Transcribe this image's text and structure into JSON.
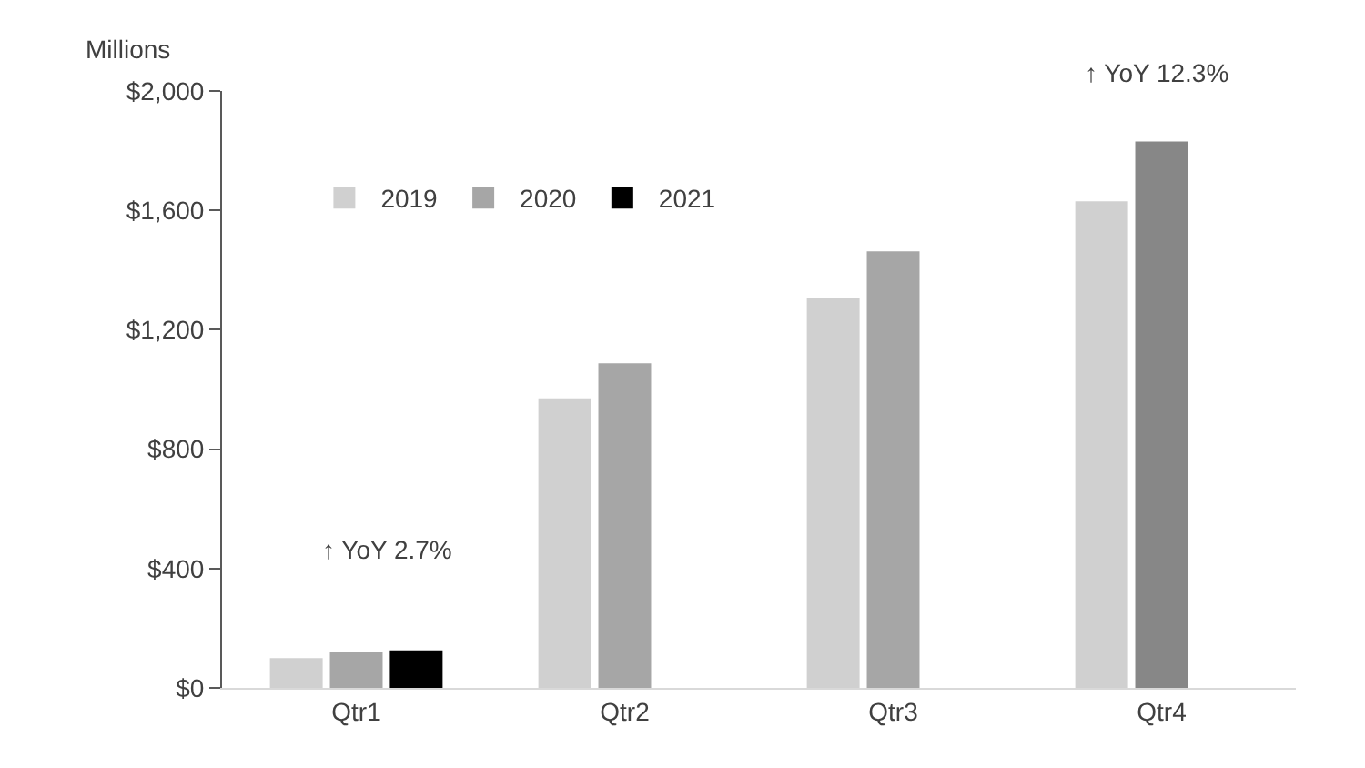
{
  "chart_data": {
    "type": "bar",
    "ylabel": "Millions",
    "categories": [
      "Qtr1",
      "Qtr2",
      "Qtr3",
      "Qtr4"
    ],
    "series": [
      {
        "name": "2019",
        "color": "#d0d0d0",
        "values": [
          100,
          970,
          1305,
          1630
        ]
      },
      {
        "name": "2020",
        "color": "#a6a6a6",
        "colors": [
          "#a6a6a6",
          "#a6a6a6",
          "#a6a6a6",
          "#878787"
        ],
        "values": [
          121,
          1088,
          1463,
          1831
        ]
      },
      {
        "name": "2021",
        "color": "#000000",
        "values": [
          126,
          null,
          null,
          null
        ]
      }
    ],
    "ylim": [
      0,
      2000
    ],
    "yticks": [
      {
        "value": 0,
        "label": "$0"
      },
      {
        "value": 400,
        "label": "$400"
      },
      {
        "value": 800,
        "label": "$800"
      },
      {
        "value": 1200,
        "label": "$1,200"
      },
      {
        "value": 1600,
        "label": "$1,600"
      },
      {
        "value": 2000,
        "label": "$2,000"
      }
    ],
    "annotations": [
      "↑ YoY 2.7%",
      "↑ YoY 12.3%"
    ],
    "grid": false,
    "legend": "top left"
  }
}
